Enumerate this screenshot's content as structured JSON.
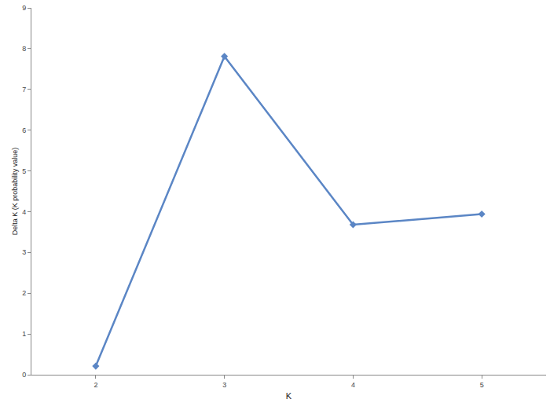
{
  "chart_data": {
    "type": "line",
    "x_label": "K",
    "y_label": "Delta K (K probability value)",
    "x": [
      2,
      3,
      4,
      5
    ],
    "values": [
      0.21,
      7.81,
      3.68,
      3.94
    ],
    "color": "#5b86c5",
    "marker": "diamond",
    "line_style": "solid",
    "xlim": [
      1.5,
      5.5
    ],
    "xticks": [
      2,
      3,
      4,
      5
    ],
    "ylim": [
      0,
      9
    ],
    "yticks": [
      0,
      1,
      2,
      3,
      4,
      5,
      6,
      7,
      8,
      9
    ],
    "grid": false
  }
}
